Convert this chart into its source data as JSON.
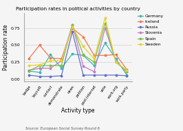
{
  "title": "Participation rates in political activities by country",
  "xlabel": "Activity type",
  "ylabel": "Participation rate",
  "source": "Source: European Social Survey Round 6",
  "categories": [
    "badge",
    "boycott",
    "contact",
    "demonstrate",
    "news",
    "petition",
    "post.internet",
    "vote",
    "work.org",
    "work.party"
  ],
  "countries": [
    "Germany",
    "Iceland",
    "Russia",
    "Slovenia",
    "Spain",
    "Sweden"
  ],
  "colors": [
    "#3ab8b0",
    "#f07850",
    "#6070c8",
    "#c878c8",
    "#78c040",
    "#e8d030"
  ],
  "data": {
    "Germany": [
      0.12,
      0.1,
      0.36,
      0.16,
      0.37,
      0.35,
      0.2,
      0.53,
      0.3,
      0.06
    ],
    "Iceland": [
      0.3,
      0.5,
      0.31,
      0.3,
      0.75,
      0.62,
      0.35,
      0.35,
      0.36,
      0.14
    ],
    "Russia": [
      0.06,
      0.04,
      0.04,
      0.05,
      0.7,
      0.06,
      0.06,
      0.06,
      0.06,
      0.05
    ],
    "Slovenia": [
      0.13,
      0.16,
      0.16,
      0.27,
      0.8,
      0.19,
      0.11,
      0.75,
      0.26,
      0.11
    ],
    "Spain": [
      0.12,
      0.2,
      0.2,
      0.2,
      0.8,
      0.36,
      0.25,
      0.82,
      0.25,
      0.11
    ],
    "Sweden": [
      0.2,
      0.21,
      0.27,
      0.27,
      0.77,
      0.48,
      0.3,
      0.9,
      0.25,
      0.13
    ]
  },
  "yticks": [
    0.0,
    0.25,
    0.5,
    0.75
  ],
  "ylim": [
    -0.03,
    0.97
  ],
  "background_color": "#f5f5f5",
  "grid_color": "#d0d0d0"
}
